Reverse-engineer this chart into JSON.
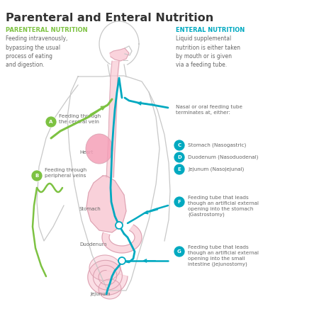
{
  "title": "Parenteral and Enteral Nutrition",
  "title_fontsize": 11.5,
  "bg_color": "#ffffff",
  "left_heading": "PARENTERAL NUTRITION",
  "left_heading_color": "#7dc242",
  "left_desc": "Feeding intravenously,\nbypassing the usual\nprocess of eating\nand digestion.",
  "right_heading": "ENTERAL NUTRITION",
  "right_heading_color": "#00a9c0",
  "right_desc": "Liquid supplemental\nnutrition is either taken\nby mouth or is given\nvia a feeding tube.",
  "label_nasal": "Nasal or oral feeding tube\nterminates at, either:",
  "label_C_text": "Stomach (Nasogastric)",
  "label_D_text": "Duodenum (Nasoduodenal)",
  "label_E_text": "Jejunum (Nasojejunal)",
  "label_F_text": "Feeding tube that leads\nthough an artificial external\nopening into the stomach\n(Gastrostomy)",
  "label_G_text": "Feeding tube that leads\nthough an artificial external\nopening into the small\nintestine (Jejunostomy)",
  "label_A_text": "Feeding through\nthe central vein",
  "label_B_text": "Feeding through\nperipheral veins",
  "heart_label": "Heart",
  "stomach_label": "Stomach",
  "duodenum_label": "Duodenum",
  "jejunum_label": "Jejunum",
  "organ_color": "#f9c9d4",
  "organ_edge": "#d9a0b0",
  "body_edge": "#c8c8c8",
  "green_color": "#7dc242",
  "blue_color": "#00a9c0",
  "text_color": "#666666",
  "dark_text": "#333333"
}
